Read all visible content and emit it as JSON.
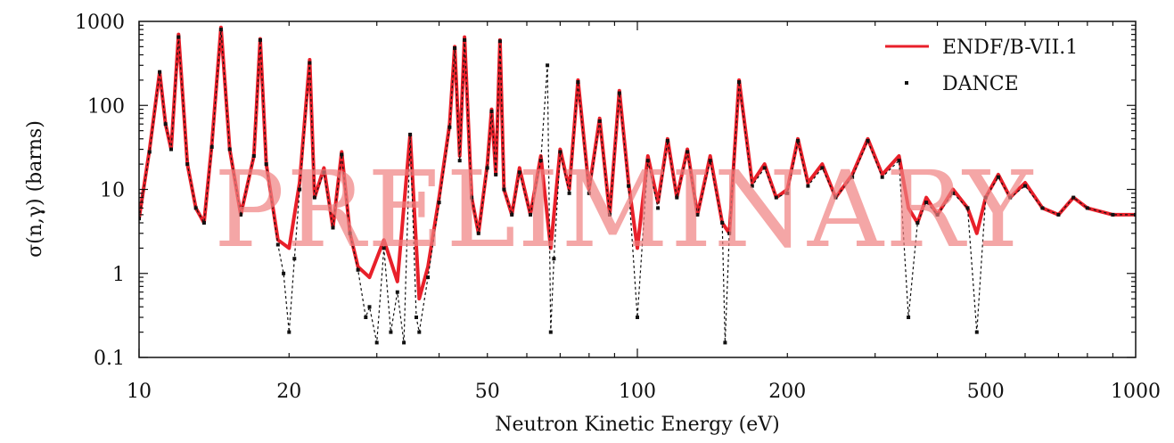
{
  "chart_data": {
    "type": "line",
    "xlabel": "Neutron Kinetic Energy (eV)",
    "ylabel": "σ(n,γ) (barns)",
    "xscale": "log",
    "yscale": "log",
    "xlim": [
      10,
      1000
    ],
    "ylim": [
      0.1,
      1000
    ],
    "xticks": [
      10,
      20,
      50,
      100,
      200,
      500,
      1000
    ],
    "xtick_labels": [
      "10",
      "20",
      "50",
      "100",
      "200",
      "500",
      "1000"
    ],
    "yticks": [
      0.1,
      1,
      10,
      100,
      1000
    ],
    "ytick_labels": [
      "0.1",
      "1",
      "10",
      "100",
      "1000"
    ],
    "watermark": "PRELIMINARY",
    "legend_position": "top-right",
    "colors": {
      "endf": "#e8202a",
      "dance": "#111111",
      "watermark": "#f08080"
    },
    "series": [
      {
        "name": "ENDF/B-VII.1",
        "style": "line",
        "x": [
          10,
          10.5,
          11,
          11.3,
          11.6,
          12,
          12.5,
          13,
          13.5,
          14,
          14.6,
          15.2,
          16,
          17,
          17.5,
          18,
          19,
          20,
          21,
          22,
          22.5,
          23.5,
          24.5,
          25.5,
          26.5,
          27.5,
          29,
          31,
          33,
          35,
          36.5,
          38,
          40,
          42,
          43,
          44,
          45,
          46.5,
          48,
          50,
          51,
          52,
          53,
          54,
          56,
          58,
          61,
          64,
          67,
          70,
          73,
          76,
          80,
          84,
          88,
          92,
          96,
          100,
          105,
          110,
          115,
          120,
          126,
          132,
          140,
          148,
          153,
          160,
          170,
          180,
          190,
          200,
          210,
          220,
          235,
          250,
          270,
          290,
          310,
          335,
          350,
          365,
          380,
          400,
          430,
          460,
          480,
          500,
          530,
          560,
          600,
          650,
          700,
          750,
          800,
          900,
          1000
        ],
        "y": [
          4.5,
          30,
          250,
          60,
          30,
          700,
          20,
          6,
          4,
          35,
          850,
          30,
          5,
          25,
          620,
          20,
          2.5,
          2,
          12,
          350,
          8,
          18,
          3.5,
          28,
          3,
          1.2,
          0.9,
          2.5,
          0.8,
          45,
          0.5,
          1.2,
          8,
          60,
          500,
          25,
          650,
          8,
          3,
          20,
          90,
          15,
          600,
          10,
          5,
          18,
          5,
          25,
          2,
          30,
          10,
          200,
          10,
          70,
          5,
          150,
          12,
          2,
          25,
          7,
          40,
          8,
          30,
          5,
          25,
          4,
          3,
          200,
          12,
          20,
          8,
          10,
          40,
          12,
          20,
          8,
          15,
          40,
          15,
          25,
          6,
          4,
          8,
          5,
          10,
          6,
          3,
          8,
          15,
          8,
          12,
          6,
          5,
          8,
          6,
          5,
          5
        ]
      },
      {
        "name": "DANCE",
        "style": "points",
        "x": [
          10,
          10.5,
          11,
          11.3,
          11.6,
          12,
          12.5,
          13,
          13.5,
          14,
          14.6,
          15.2,
          16,
          17,
          17.5,
          18,
          19,
          19.5,
          20,
          20.5,
          21,
          22,
          22.5,
          23.5,
          24.5,
          25.5,
          26.5,
          27.5,
          28.5,
          29,
          30,
          31,
          32,
          33,
          34,
          35,
          36,
          36.5,
          38,
          40,
          42,
          43,
          44,
          45,
          46.5,
          48,
          50,
          51,
          52,
          53,
          54,
          56,
          58,
          61,
          64,
          66,
          67,
          68,
          70,
          73,
          76,
          80,
          84,
          88,
          92,
          96,
          100,
          105,
          110,
          115,
          120,
          126,
          132,
          140,
          148,
          150,
          153,
          160,
          170,
          180,
          190,
          200,
          210,
          220,
          235,
          250,
          270,
          290,
          310,
          335,
          350,
          365,
          380,
          400,
          430,
          460,
          480,
          500,
          530,
          560,
          600,
          650,
          700,
          750,
          800,
          900,
          1000
        ],
        "y": [
          4.5,
          28,
          250,
          60,
          30,
          650,
          20,
          6,
          4,
          32,
          800,
          30,
          5,
          25,
          600,
          20,
          2.2,
          1,
          0.2,
          1.5,
          10,
          320,
          8,
          16,
          3.5,
          26,
          3,
          1.1,
          0.3,
          0.4,
          0.15,
          2,
          0.2,
          0.6,
          0.15,
          45,
          0.3,
          0.2,
          0.9,
          7,
          55,
          480,
          22,
          600,
          8,
          3,
          18,
          85,
          15,
          580,
          10,
          5,
          16,
          5,
          22,
          300,
          0.2,
          1.5,
          28,
          9,
          190,
          9,
          65,
          5,
          140,
          11,
          0.3,
          22,
          6,
          38,
          8,
          28,
          5,
          22,
          4,
          0.15,
          3,
          190,
          11,
          18,
          8,
          9,
          38,
          11,
          18,
          8,
          14,
          38,
          14,
          22,
          0.3,
          4,
          7,
          5,
          9,
          6,
          0.2,
          8,
          14,
          8,
          11,
          6,
          5,
          8,
          6,
          5,
          5
        ]
      }
    ]
  }
}
